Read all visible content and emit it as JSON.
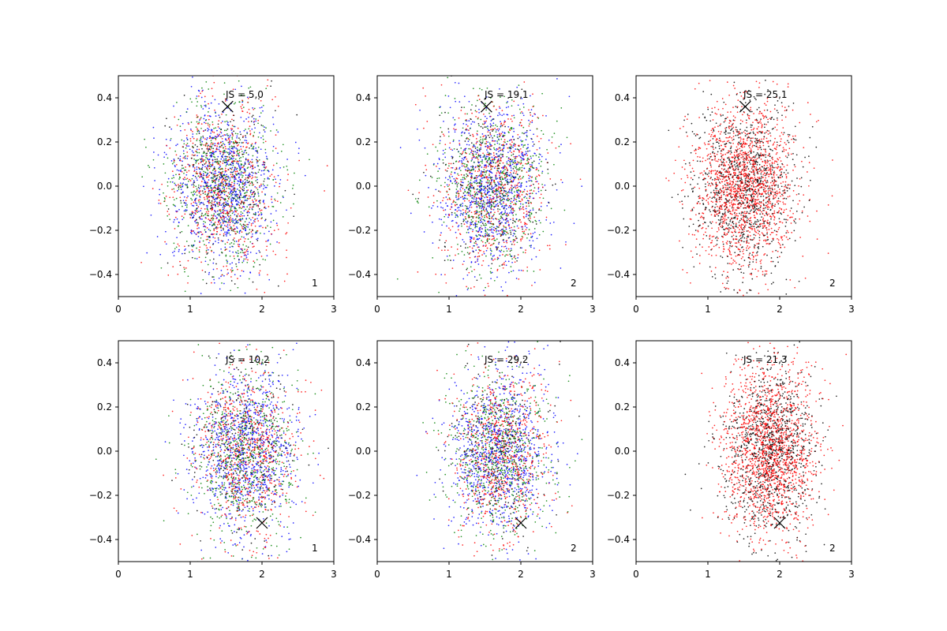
{
  "chart_data": [
    {
      "type": "scatter",
      "title": "JS = 5,0",
      "panel_label": "1",
      "xlim": [
        0,
        3
      ],
      "ylim": [
        -0.5,
        0.5
      ],
      "x_ticks": [
        "0",
        "1",
        "2",
        "3"
      ],
      "y_ticks": [
        "−0.4",
        "−0.2",
        "0.0",
        "0.2",
        "0.4"
      ],
      "marker": {
        "x": 1.52,
        "y": 0.36,
        "symbol": "x"
      },
      "cloud": {
        "center_x": 1.45,
        "center_y": 0.0,
        "spread_x": 0.62,
        "spread_y": 0.2
      },
      "series": [
        {
          "color": "#0000ff",
          "n": 900
        },
        {
          "color": "#ff0000",
          "n": 700
        },
        {
          "color": "#008000",
          "n": 700
        },
        {
          "color": "#000000",
          "n": 250
        }
      ]
    },
    {
      "type": "scatter",
      "title": "JS = 19,1",
      "panel_label": "2",
      "xlim": [
        0,
        3
      ],
      "ylim": [
        -0.5,
        0.5
      ],
      "x_ticks": [
        "0",
        "1",
        "2",
        "3"
      ],
      "y_ticks": [
        "−0.4",
        "−0.2",
        "0.0",
        "0.2",
        "0.4"
      ],
      "marker": {
        "x": 1.52,
        "y": 0.36,
        "symbol": "x"
      },
      "cloud": {
        "center_x": 1.6,
        "center_y": 0.0,
        "spread_x": 0.62,
        "spread_y": 0.2
      },
      "series": [
        {
          "color": "#0000ff",
          "n": 900
        },
        {
          "color": "#ff0000",
          "n": 700
        },
        {
          "color": "#008000",
          "n": 700
        },
        {
          "color": "#000000",
          "n": 250
        }
      ]
    },
    {
      "type": "scatter",
      "title": "JS = 25,1",
      "panel_label": "2",
      "xlim": [
        0,
        3
      ],
      "ylim": [
        -0.5,
        0.5
      ],
      "x_ticks": [
        "0",
        "1",
        "2",
        "3"
      ],
      "y_ticks": [
        "−0.4",
        "−0.2",
        "0.0",
        "0.2",
        "0.4"
      ],
      "marker": {
        "x": 1.52,
        "y": 0.36,
        "symbol": "x"
      },
      "cloud": {
        "center_x": 1.5,
        "center_y": 0.0,
        "spread_x": 0.6,
        "spread_y": 0.2
      },
      "series": [
        {
          "color": "#ff0000",
          "n": 1600
        },
        {
          "color": "#000000",
          "n": 1000
        }
      ]
    },
    {
      "type": "scatter",
      "title": "JS = 10,2",
      "panel_label": "1",
      "xlim": [
        0,
        3
      ],
      "ylim": [
        -0.5,
        0.5
      ],
      "x_ticks": [
        "0",
        "1",
        "2",
        "3"
      ],
      "y_ticks": [
        "−0.4",
        "−0.2",
        "0.0",
        "0.2",
        "0.4"
      ],
      "marker": {
        "x": 2.0,
        "y": -0.325,
        "symbol": "x"
      },
      "cloud": {
        "center_x": 1.75,
        "center_y": 0.0,
        "spread_x": 0.6,
        "spread_y": 0.2
      },
      "series": [
        {
          "color": "#0000ff",
          "n": 900
        },
        {
          "color": "#ff0000",
          "n": 700
        },
        {
          "color": "#008000",
          "n": 700
        },
        {
          "color": "#000000",
          "n": 250
        }
      ]
    },
    {
      "type": "scatter",
      "title": "JS = 29,2",
      "panel_label": "2",
      "xlim": [
        0,
        3
      ],
      "ylim": [
        -0.5,
        0.5
      ],
      "x_ticks": [
        "0",
        "1",
        "2",
        "3"
      ],
      "y_ticks": [
        "−0.4",
        "−0.2",
        "0.0",
        "0.2",
        "0.4"
      ],
      "marker": {
        "x": 2.0,
        "y": -0.325,
        "symbol": "x"
      },
      "cloud": {
        "center_x": 1.7,
        "center_y": 0.0,
        "spread_x": 0.58,
        "spread_y": 0.2
      },
      "series": [
        {
          "color": "#0000ff",
          "n": 900
        },
        {
          "color": "#ff0000",
          "n": 700
        },
        {
          "color": "#008000",
          "n": 700
        },
        {
          "color": "#000000",
          "n": 250
        }
      ]
    },
    {
      "type": "scatter",
      "title": "JS = 21,3",
      "panel_label": "2",
      "xlim": [
        0,
        3
      ],
      "ylim": [
        -0.5,
        0.5
      ],
      "x_ticks": [
        "0",
        "1",
        "2",
        "3"
      ],
      "y_ticks": [
        "−0.4",
        "−0.2",
        "0.0",
        "0.2",
        "0.4"
      ],
      "marker": {
        "x": 2.0,
        "y": -0.325,
        "symbol": "x"
      },
      "cloud": {
        "center_x": 1.85,
        "center_y": 0.0,
        "spread_x": 0.55,
        "spread_y": 0.2
      },
      "series": [
        {
          "color": "#ff0000",
          "n": 1600
        },
        {
          "color": "#000000",
          "n": 1000
        }
      ]
    }
  ]
}
